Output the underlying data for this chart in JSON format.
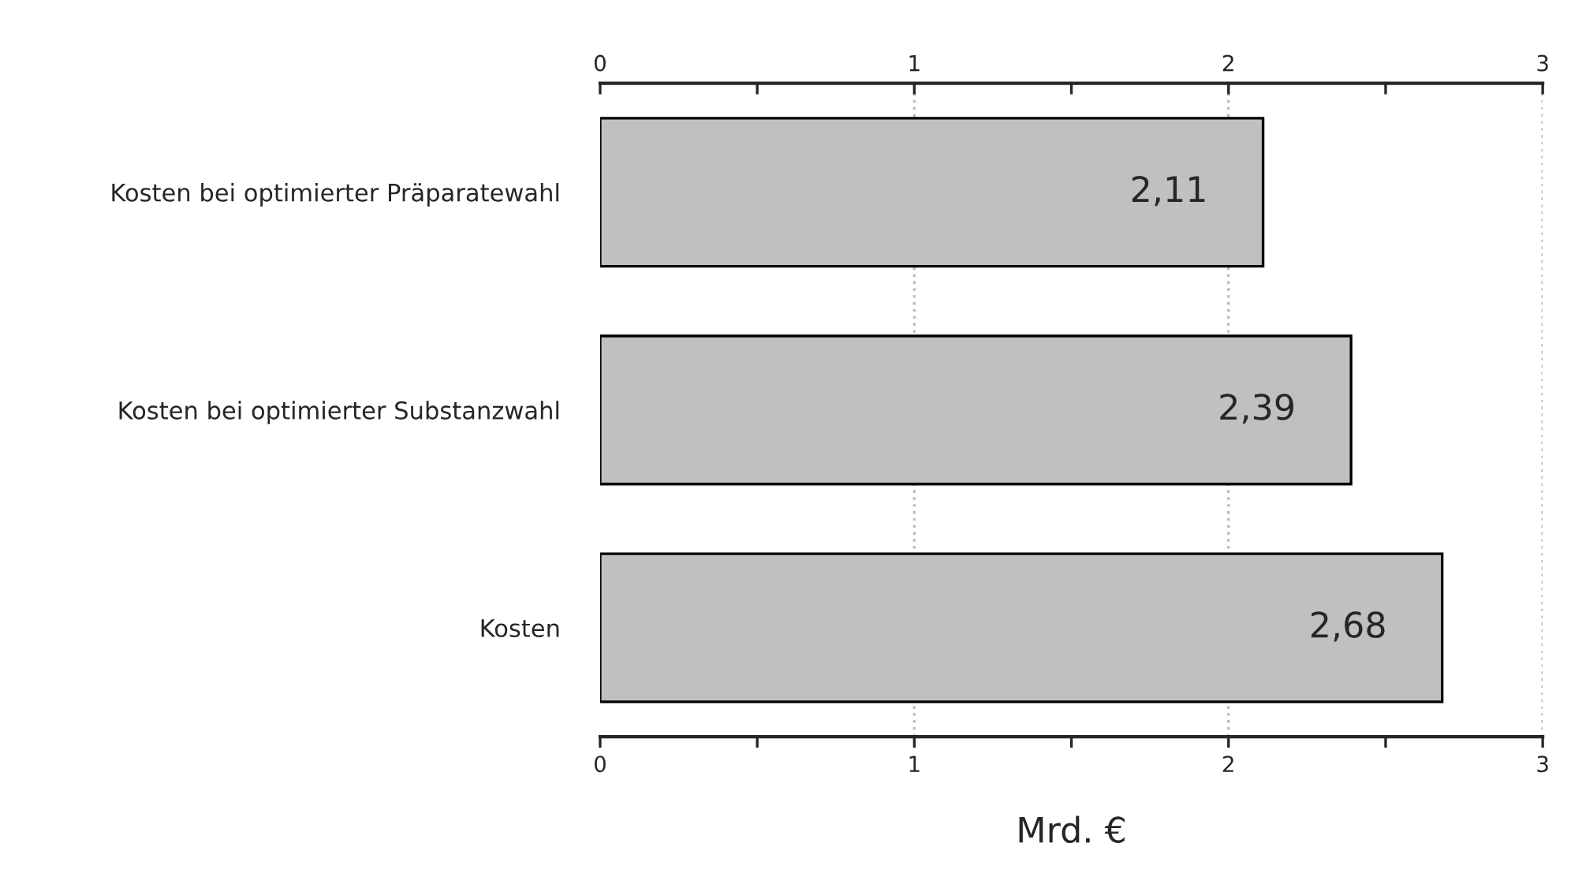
{
  "chart_data": {
    "type": "bar",
    "orientation": "horizontal",
    "categories": [
      "Kosten bei optimierter Präparatewahl",
      "Kosten bei optimierter Substanzwahl",
      "Kosten"
    ],
    "values": [
      2.11,
      2.39,
      2.68
    ],
    "value_labels": [
      "2,11",
      "2,39",
      "2,68"
    ],
    "color": "#c0c0c0",
    "xlabel": "Mrd. €",
    "xlim": [
      0,
      3
    ],
    "xticks": [
      0,
      {
        "value": 0.5,
        "label": null
      },
      1,
      {
        "value": 1.5,
        "label": null
      },
      2,
      {
        "value": 2.5,
        "label": null
      },
      3
    ],
    "x2lim": [
      0,
      3
    ],
    "x2ticks": [
      0,
      {
        "value": 0.5,
        "label": null
      },
      1,
      {
        "value": 1.5,
        "label": null
      },
      2,
      {
        "value": 2.5,
        "label": null
      },
      3
    ],
    "grid": "x"
  }
}
